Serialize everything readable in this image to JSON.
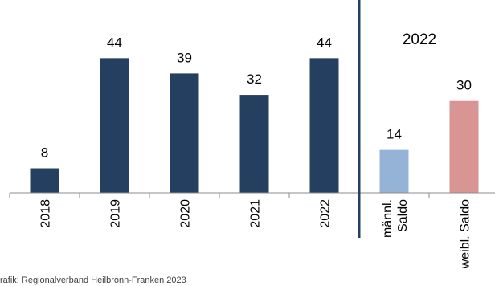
{
  "chart_data": {
    "type": "bar",
    "categories": [
      "2018",
      "2019",
      "2020",
      "2021",
      "2022",
      "männl.\nSaldo",
      "weibl. Saldo"
    ],
    "values": [
      8,
      44,
      39,
      32,
      44,
      14,
      30
    ],
    "bar_colors": [
      "#243f60",
      "#243f60",
      "#243f60",
      "#243f60",
      "#243f60",
      "#95b3d7",
      "#d99594"
    ],
    "data_labels": [
      "8",
      "44",
      "39",
      "32",
      "44",
      "14",
      "30"
    ],
    "section_label": "2022",
    "ylim": [
      0,
      50
    ],
    "grid": false,
    "legend": "none"
  },
  "source": "rafik: Regionalverband Heilbronn-Franken 2023"
}
